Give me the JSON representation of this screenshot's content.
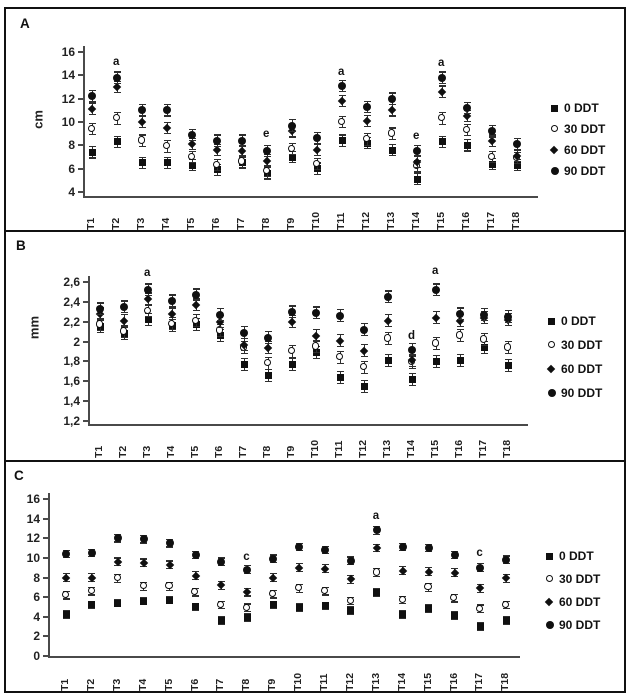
{
  "figure": {
    "panel_labels": [
      "A",
      "B",
      "C"
    ],
    "marker_color": "#101010",
    "axis_color": "#4a4a4a",
    "legend_labels": [
      "0 DDT",
      "30 DDT",
      "60 DDT",
      "90 DDT"
    ],
    "legend_markers": [
      "filled-square",
      "open-circle",
      "filled-diamond",
      "filled-circle"
    ]
  },
  "chart_data": [
    {
      "type": "scatter",
      "panel_label": "A",
      "ylabel": "cm",
      "ylim": [
        4,
        16
      ],
      "grid": false,
      "legend_position": "right",
      "yticks": [
        {
          "label": "16",
          "value": 16
        },
        {
          "label": "14",
          "value": 14
        },
        {
          "label": "12",
          "value": 12
        },
        {
          "label": "10",
          "value": 10
        },
        {
          "label": "8",
          "value": 8
        },
        {
          "label": "6",
          "value": 6
        },
        {
          "label": "4",
          "value": 4
        }
      ],
      "categories": [
        "T1",
        "T2",
        "T3",
        "T4",
        "T5",
        "T6",
        "T7",
        "T8",
        "T9",
        "T10",
        "T11",
        "T12",
        "T13",
        "T14",
        "T15",
        "T16",
        "T17",
        "T18"
      ],
      "error_bar": 0.5,
      "series": [
        {
          "name": "0 DDT",
          "marker": "filled-square",
          "values": [
            7.4,
            8.3,
            6.5,
            6.5,
            6.3,
            5.9,
            6.5,
            5.6,
            7.0,
            6.0,
            8.4,
            8.2,
            7.6,
            5.1,
            8.3,
            8.0,
            6.4,
            6.3
          ]
        },
        {
          "name": "30 DDT",
          "marker": "open-circle",
          "values": [
            9.4,
            10.3,
            8.4,
            7.9,
            7.0,
            6.3,
            6.6,
            5.8,
            7.7,
            6.4,
            10.0,
            8.5,
            9.0,
            6.2,
            10.3,
            9.3,
            7.0,
            6.9
          ]
        },
        {
          "name": "60 DDT",
          "marker": "filled-diamond",
          "values": [
            11.1,
            13.0,
            10.0,
            9.5,
            8.1,
            7.6,
            7.5,
            6.7,
            9.2,
            7.6,
            11.8,
            10.1,
            11.0,
            6.6,
            12.6,
            10.5,
            8.4,
            7.1
          ]
        },
        {
          "name": "90 DDT",
          "marker": "filled-circle",
          "values": [
            12.2,
            13.8,
            11.0,
            11.0,
            8.9,
            8.4,
            8.4,
            7.5,
            9.7,
            8.6,
            13.1,
            11.3,
            12.0,
            7.5,
            13.8,
            11.2,
            9.2,
            8.1
          ]
        }
      ],
      "annotations": [
        {
          "category": "T2",
          "label": "a",
          "value": 15.1
        },
        {
          "category": "T8",
          "label": "e",
          "value": 8.9
        },
        {
          "category": "T11",
          "label": "a",
          "value": 14.2
        },
        {
          "category": "T14",
          "label": "e",
          "value": 8.7
        },
        {
          "category": "T15",
          "label": "a",
          "value": 15.0
        }
      ]
    },
    {
      "type": "scatter",
      "panel_label": "B",
      "ylabel": "mm",
      "ylim": [
        1.2,
        2.6
      ],
      "grid": false,
      "legend_position": "right",
      "yticks": [
        {
          "label": "2,6",
          "value": 2.6
        },
        {
          "label": "2,4",
          "value": 2.4
        },
        {
          "label": "2,2",
          "value": 2.2
        },
        {
          "label": "2",
          "value": 2.0
        },
        {
          "label": "1,8",
          "value": 1.8
        },
        {
          "label": "1,6",
          "value": 1.6
        },
        {
          "label": "1,4",
          "value": 1.4
        },
        {
          "label": "1,2",
          "value": 1.2
        }
      ],
      "categories": [
        "T1",
        "T2",
        "T3",
        "T4",
        "T5",
        "T6",
        "T7",
        "T8",
        "T9",
        "T10",
        "T11",
        "T12",
        "T13",
        "T14",
        "T15",
        "T16",
        "T17",
        "T18"
      ],
      "error_bar": 0.06,
      "series": [
        {
          "name": "0 DDT",
          "marker": "filled-square",
          "values": [
            2.15,
            2.08,
            2.22,
            2.16,
            2.17,
            2.06,
            1.77,
            1.66,
            1.77,
            1.89,
            1.64,
            1.55,
            1.81,
            1.62,
            1.8,
            1.81,
            1.94,
            1.76
          ]
        },
        {
          "name": "30 DDT",
          "marker": "open-circle",
          "values": [
            2.17,
            2.1,
            2.31,
            2.18,
            2.21,
            2.11,
            1.94,
            1.78,
            1.9,
            1.95,
            1.84,
            1.74,
            2.03,
            1.79,
            1.98,
            2.06,
            2.02,
            1.94
          ]
        },
        {
          "name": "60 DDT",
          "marker": "filled-diamond",
          "values": [
            2.28,
            2.21,
            2.43,
            2.28,
            2.37,
            2.2,
            1.97,
            1.94,
            2.2,
            2.06,
            2.01,
            1.91,
            2.21,
            1.81,
            2.24,
            2.21,
            2.24,
            2.22
          ]
        },
        {
          "name": "90 DDT",
          "marker": "filled-circle",
          "values": [
            2.33,
            2.35,
            2.52,
            2.41,
            2.47,
            2.27,
            2.09,
            2.04,
            2.3,
            2.29,
            2.26,
            2.12,
            2.45,
            1.92,
            2.52,
            2.28,
            2.27,
            2.25
          ]
        }
      ],
      "annotations": [
        {
          "category": "T3",
          "label": "a",
          "value": 2.68
        },
        {
          "category": "T14",
          "label": "d",
          "value": 2.05
        },
        {
          "category": "T15",
          "label": "a",
          "value": 2.7
        }
      ]
    },
    {
      "type": "scatter",
      "panel_label": "C",
      "ylabel": "",
      "ylim": [
        0,
        16
      ],
      "grid": false,
      "legend_position": "right",
      "yticks": [
        {
          "label": "16",
          "value": 16
        },
        {
          "label": "14",
          "value": 14
        },
        {
          "label": "12",
          "value": 12
        },
        {
          "label": "10",
          "value": 10
        },
        {
          "label": "8",
          "value": 8
        },
        {
          "label": "6",
          "value": 6
        },
        {
          "label": "4",
          "value": 4
        },
        {
          "label": "2",
          "value": 2
        },
        {
          "label": "0",
          "value": 0
        }
      ],
      "categories": [
        "T1",
        "T2",
        "T3",
        "T4",
        "T5",
        "T6",
        "T7",
        "T8",
        "T9",
        "T10",
        "T11",
        "T12",
        "T13",
        "T14",
        "T15",
        "T16",
        "T17",
        "T18"
      ],
      "error_bar": 0.4,
      "series": [
        {
          "name": "0 DDT",
          "marker": "filled-square",
          "values": [
            4.2,
            5.2,
            5.4,
            5.6,
            5.7,
            5.0,
            3.6,
            3.9,
            5.2,
            4.9,
            5.1,
            4.6,
            6.5,
            4.2,
            4.8,
            4.1,
            3.0,
            3.6
          ]
        },
        {
          "name": "30 DDT",
          "marker": "open-circle",
          "values": [
            6.2,
            6.6,
            7.9,
            7.1,
            7.1,
            6.5,
            5.2,
            4.9,
            6.3,
            6.9,
            6.6,
            5.6,
            8.5,
            5.7,
            7.0,
            5.9,
            4.8,
            5.2
          ]
        },
        {
          "name": "60 DDT",
          "marker": "filled-diamond",
          "values": [
            8.0,
            8.0,
            9.6,
            9.5,
            9.3,
            8.2,
            7.2,
            6.5,
            8.0,
            9.0,
            8.9,
            7.8,
            11.0,
            8.7,
            8.6,
            8.5,
            6.9,
            7.9
          ]
        },
        {
          "name": "90 DDT",
          "marker": "filled-circle",
          "values": [
            10.4,
            10.5,
            12.0,
            11.9,
            11.5,
            10.3,
            9.6,
            8.8,
            9.9,
            11.1,
            10.8,
            9.7,
            12.8,
            11.1,
            11.0,
            10.3,
            9.0,
            9.8
          ]
        }
      ],
      "annotations": [
        {
          "category": "T8",
          "label": "c",
          "value": 10.0
        },
        {
          "category": "T13",
          "label": "a",
          "value": 14.2
        },
        {
          "category": "T17",
          "label": "c",
          "value": 10.4
        }
      ]
    }
  ]
}
